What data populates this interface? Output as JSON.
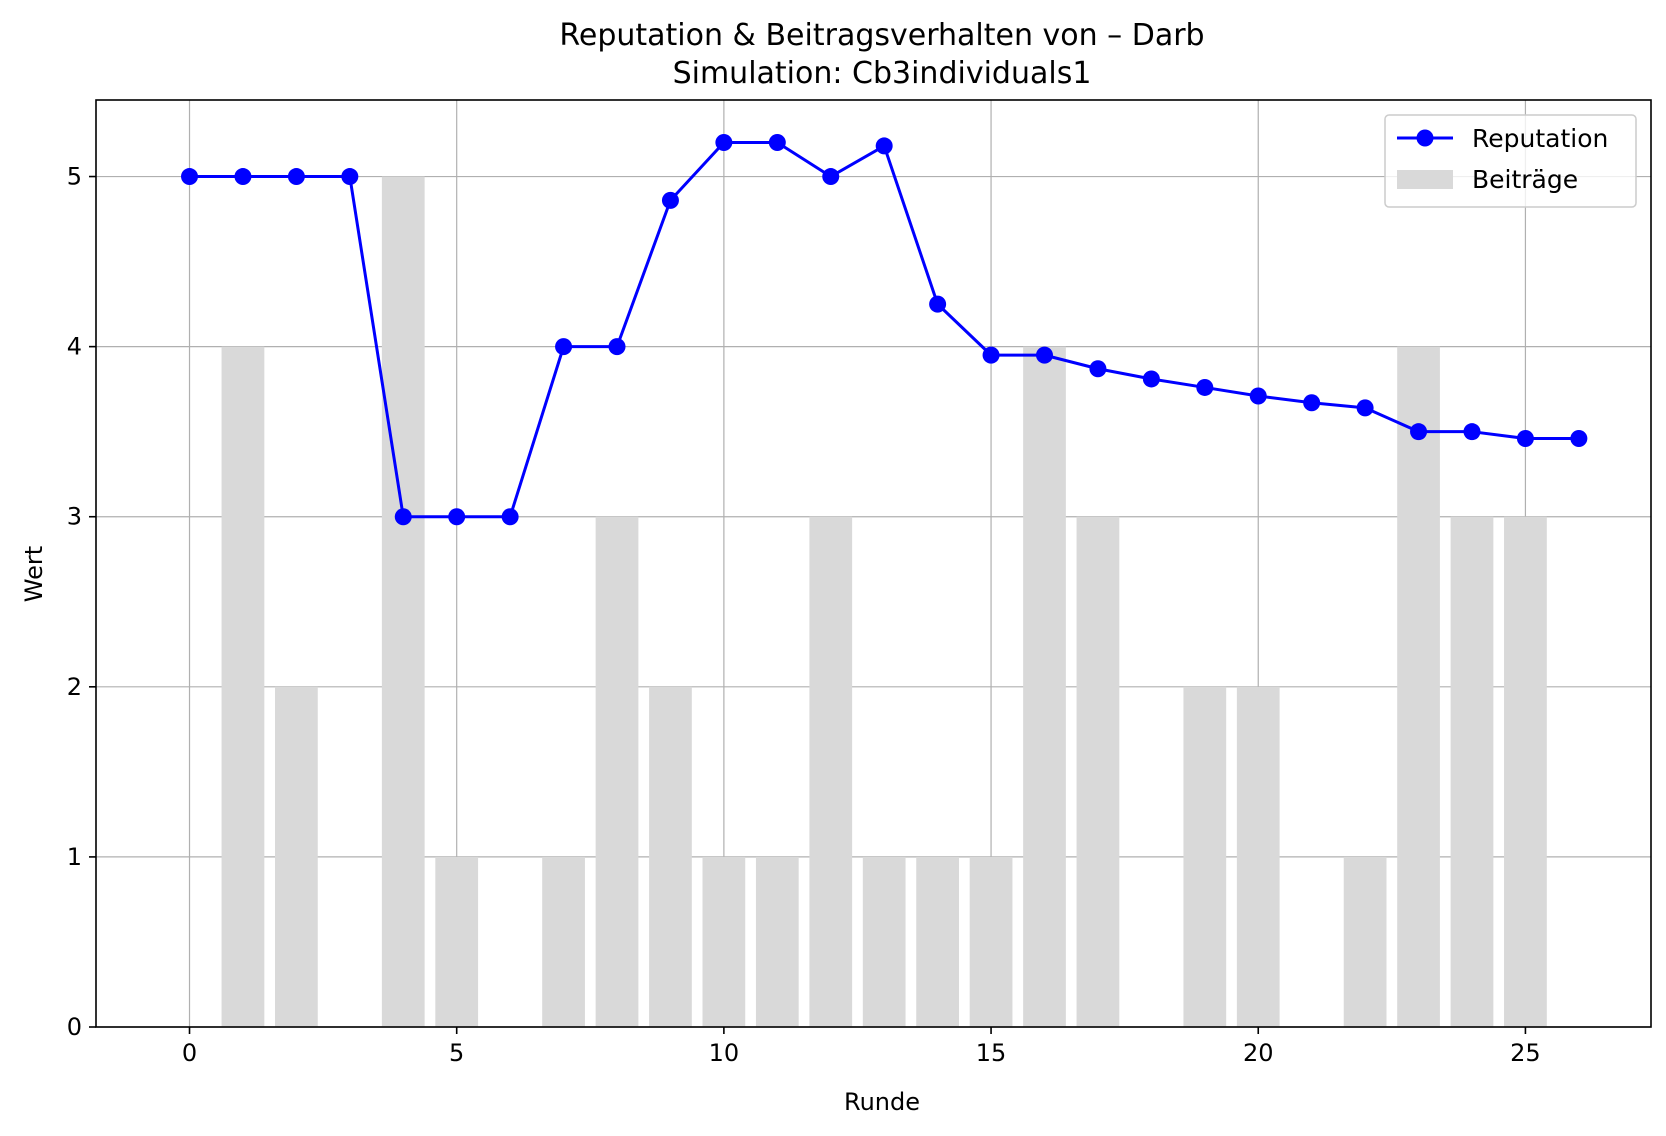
{
  "chart_data": {
    "type": "bar+line",
    "title": "Reputation & Beitragsverhalten von – Darb",
    "subtitle": "Simulation: Cb3individuals1",
    "xlabel": "Runde",
    "ylabel": "Wert",
    "xlim": [
      -1.75,
      27.35
    ],
    "ylim": [
      0,
      5.45
    ],
    "xticks": [
      0,
      5,
      10,
      15,
      20,
      25
    ],
    "yticks": [
      0,
      1,
      2,
      3,
      4,
      5
    ],
    "grid": true,
    "legend_position": "top-right",
    "x": [
      0,
      1,
      2,
      3,
      4,
      5,
      6,
      7,
      8,
      9,
      10,
      11,
      12,
      13,
      14,
      15,
      16,
      17,
      18,
      19,
      20,
      21,
      22,
      23,
      24,
      25,
      26
    ],
    "series": [
      {
        "name": "Reputation",
        "kind": "line",
        "marker": "circle",
        "color": "#0000ff",
        "values": [
          5.0,
          5.0,
          5.0,
          5.0,
          3.0,
          3.0,
          3.0,
          4.0,
          4.0,
          4.86,
          5.2,
          5.2,
          5.0,
          5.18,
          4.25,
          3.95,
          3.95,
          3.87,
          3.81,
          3.76,
          3.71,
          3.67,
          3.64,
          3.5,
          3.5,
          3.46,
          3.46
        ]
      },
      {
        "name": "Beiträge",
        "kind": "bar",
        "color": "#d9d9d9",
        "values": [
          0,
          4,
          2,
          0,
          5,
          1,
          0,
          1,
          3,
          2,
          1,
          1,
          3,
          1,
          1,
          1,
          4,
          3,
          0,
          2,
          2,
          0,
          1,
          4,
          3,
          3,
          0
        ]
      }
    ]
  }
}
